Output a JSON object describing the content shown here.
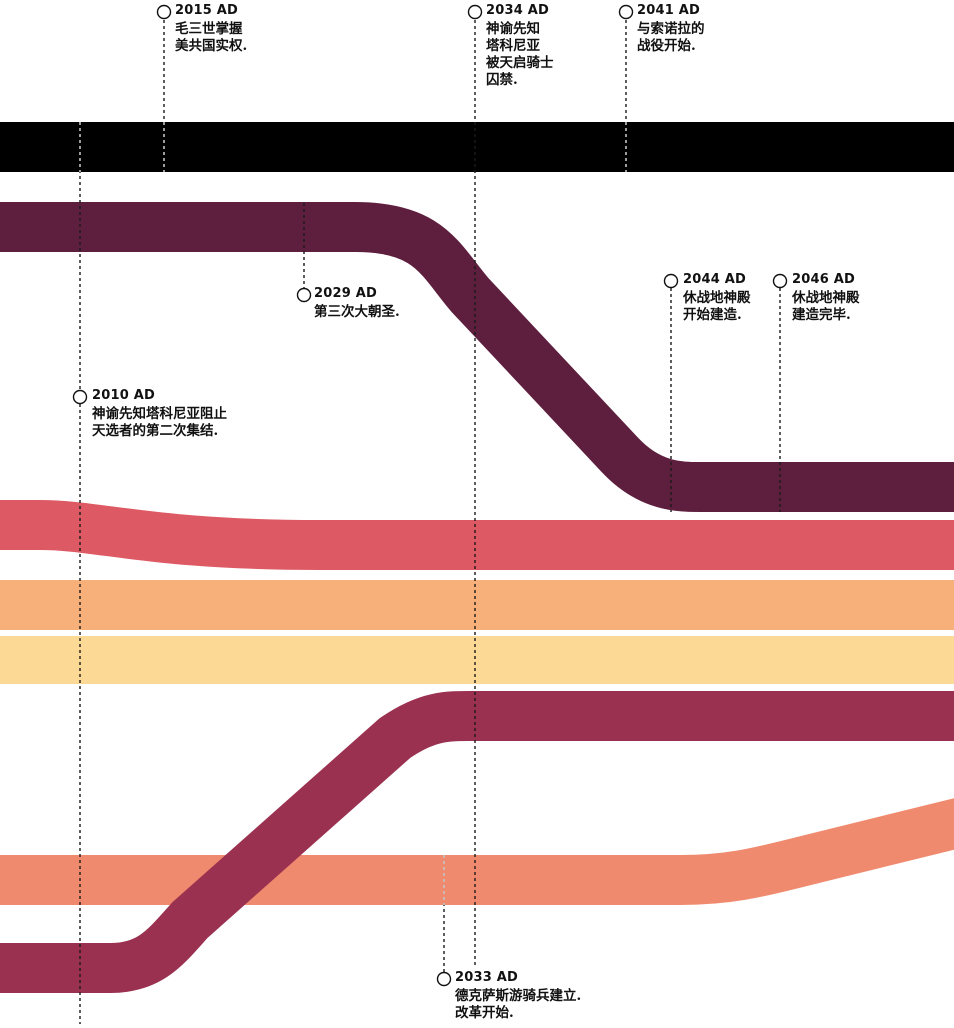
{
  "colors": {
    "black": "#000000",
    "plum": "#5e1f3e",
    "coral": "#dd5a64",
    "apricot": "#f8b07a",
    "cream": "#fdd996",
    "crimson": "#9b3150",
    "salmon": "#f08a6e"
  },
  "events": [
    {
      "year": "2015 AD",
      "text": "毛三世掌握\n美共国实权."
    },
    {
      "year": "2034 AD",
      "text": "神谕先知\n塔科尼亚\n被天启骑士\n囚禁."
    },
    {
      "year": "2041 AD",
      "text": "与索诺拉的\n战役开始."
    },
    {
      "year": "2029 AD",
      "text": "第三次大朝圣."
    },
    {
      "year": "2044 AD",
      "text": "休战地神殿\n开始建造."
    },
    {
      "year": "2046 AD",
      "text": "休战地神殿\n建造完毕."
    },
    {
      "year": "2010 AD",
      "text": "神谕先知塔科尼亚阻止\n天选者的第二次集结."
    },
    {
      "year": "2033 AD",
      "text": "德克萨斯游骑兵建立.\n改革开始."
    }
  ]
}
